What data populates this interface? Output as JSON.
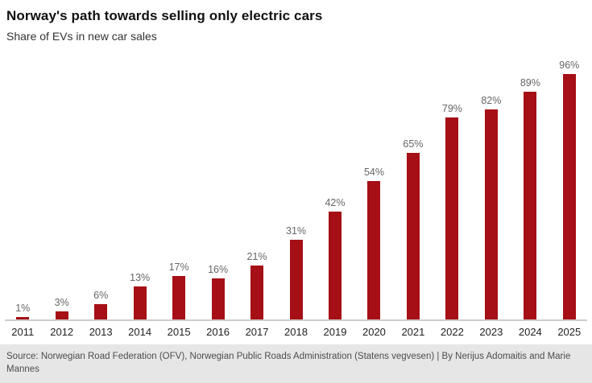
{
  "header": {
    "title": "Norway's path towards selling only electric cars",
    "subtitle": "Share of EVs in new car sales"
  },
  "chart_data": {
    "type": "bar",
    "categories": [
      "2011",
      "2012",
      "2013",
      "2014",
      "2015",
      "2016",
      "2017",
      "2018",
      "2019",
      "2020",
      "2021",
      "2022",
      "2023",
      "2024",
      "2025"
    ],
    "values": [
      1,
      3,
      6,
      13,
      17,
      16,
      21,
      31,
      42,
      54,
      65,
      79,
      82,
      89,
      96
    ],
    "value_labels": [
      "1%",
      "3%",
      "6%",
      "13%",
      "17%",
      "16%",
      "21%",
      "31%",
      "42%",
      "54%",
      "65%",
      "79%",
      "82%",
      "89%",
      "96%"
    ],
    "title": "Norway's path towards selling only electric cars",
    "xlabel": "",
    "ylabel": "Share of EVs in new car sales",
    "ylim": [
      0,
      100
    ],
    "grid": false,
    "legend": false,
    "bar_color": "#a50f15",
    "axis_color": "#cccccc",
    "label_color": "#666666"
  },
  "footer": {
    "source": "Source: Norwegian Road Federation (OFV), Norwegian Public Roads Administration (Statens vegvesen)  | By Nerijus Adomaitis and Marie Mannes"
  }
}
